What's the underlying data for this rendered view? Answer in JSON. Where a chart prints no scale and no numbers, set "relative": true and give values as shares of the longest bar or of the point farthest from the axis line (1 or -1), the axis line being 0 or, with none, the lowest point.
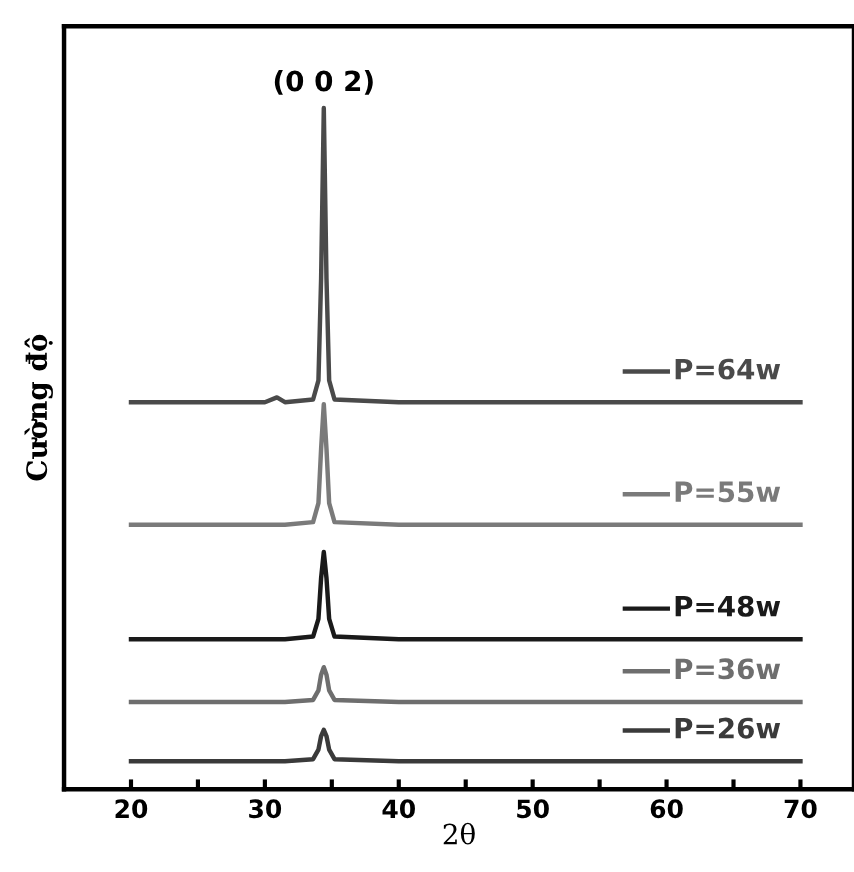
{
  "chart_data": {
    "type": "line",
    "relative": true,
    "xlabel": "2θ",
    "ylabel": "Cường độ",
    "x": [
      20,
      30,
      30.9,
      31.5,
      33.6,
      34.0,
      34.2,
      34.4,
      34.6,
      34.8,
      35.2,
      40,
      70
    ],
    "series": [
      {
        "name": "P=64w",
        "color": "#4a4a4a",
        "values": [
          0.568,
          0.568,
          0.575,
          0.568,
          0.572,
          0.6,
          0.75,
          1.0,
          0.75,
          0.6,
          0.572,
          0.568,
          0.568
        ]
      },
      {
        "name": "P=55w",
        "color": "#7a7a7a",
        "values": [
          0.388,
          0.388,
          0.388,
          0.388,
          0.392,
          0.42,
          0.5,
          0.565,
          0.5,
          0.42,
          0.392,
          0.388,
          0.388
        ]
      },
      {
        "name": "P=48w",
        "color": "#1a1a1a",
        "values": [
          0.22,
          0.22,
          0.22,
          0.22,
          0.224,
          0.25,
          0.31,
          0.348,
          0.31,
          0.25,
          0.224,
          0.22,
          0.22
        ]
      },
      {
        "name": "P=36w",
        "color": "#6e6e6e",
        "values": [
          0.128,
          0.128,
          0.128,
          0.128,
          0.131,
          0.145,
          0.168,
          0.179,
          0.168,
          0.145,
          0.131,
          0.128,
          0.128
        ]
      },
      {
        "name": "P=26w",
        "color": "#3a3a3a",
        "values": [
          0.041,
          0.041,
          0.041,
          0.041,
          0.044,
          0.058,
          0.078,
          0.087,
          0.078,
          0.058,
          0.044,
          0.041,
          0.041
        ]
      }
    ],
    "xlim": [
      15,
      74
    ],
    "xticks": [
      20,
      {
        "value": 25,
        "label": null
      },
      30,
      {
        "value": 35,
        "label": null
      },
      40,
      {
        "value": 45,
        "label": null
      },
      50,
      {
        "value": 55,
        "label": null
      },
      60,
      {
        "value": 65,
        "label": null
      },
      70
    ],
    "annotations": [
      {
        "text": "(0 0 2)",
        "x": 34.4,
        "y": 1.0
      }
    ],
    "grid": false,
    "legend": "right",
    "marker": "none",
    "line_style": "solid"
  }
}
